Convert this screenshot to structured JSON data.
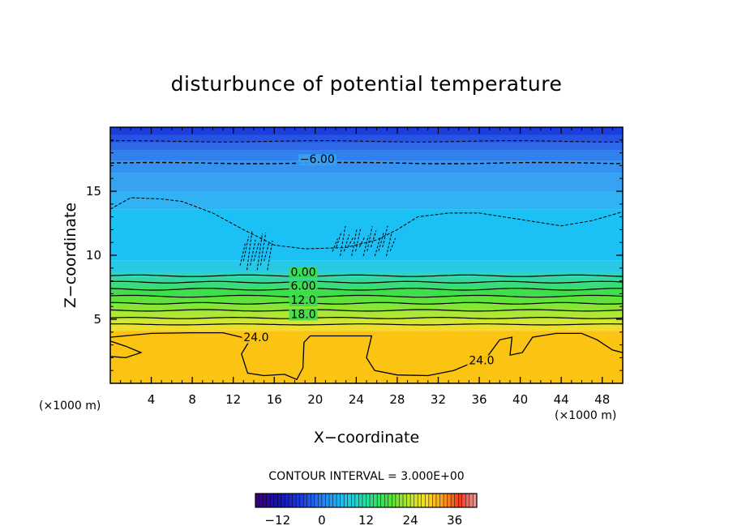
{
  "chart_data": {
    "type": "heatmap",
    "title": "disturbunce of potential temperature",
    "xlabel": "X−coordinate",
    "ylabel": "Z−coordinate",
    "x_unit_left": "(×1000 m)",
    "x_unit_right": "(×1000 m)",
    "xlim": [
      0,
      50
    ],
    "ylim": [
      0,
      20
    ],
    "x_ticks": [
      4,
      8,
      12,
      16,
      20,
      24,
      28,
      32,
      36,
      40,
      44,
      48
    ],
    "y_ticks": [
      5,
      10,
      15
    ],
    "contour_interval_text": "CONTOUR INTERVAL = 3.000E+00",
    "contour_labels": [
      {
        "text": "−6.00",
        "x": 18.5,
        "y": 17.2
      },
      {
        "text": "0.00",
        "x": 17.6,
        "y": 8.4
      },
      {
        "text": "6.00",
        "x": 17.6,
        "y": 7.3
      },
      {
        "text": "12.0",
        "x": 17.6,
        "y": 6.2
      },
      {
        "text": "18.0",
        "x": 17.6,
        "y": 5.1
      },
      {
        "text": "24.0",
        "x": 13.0,
        "y": 3.3
      },
      {
        "text": "24.0",
        "x": 35.0,
        "y": 1.5
      }
    ],
    "levels": [
      {
        "z_top": 20.0,
        "z_bot": 19.4,
        "value": -12,
        "color": "#1a3ddc"
      },
      {
        "z_top": 19.4,
        "z_bot": 18.8,
        "value": -11,
        "color": "#2553e2"
      },
      {
        "z_top": 18.8,
        "z_bot": 18.2,
        "value": -10,
        "color": "#2e6ae8"
      },
      {
        "z_top": 18.2,
        "z_bot": 17.4,
        "value": -9,
        "color": "#3080ee"
      },
      {
        "z_top": 17.4,
        "z_bot": 16.4,
        "value": -7,
        "color": "#3692f0"
      },
      {
        "z_top": 16.4,
        "z_bot": 15.0,
        "value": -6,
        "color": "#37a2f2"
      },
      {
        "z_top": 15.0,
        "z_bot": 13.6,
        "value": -4,
        "color": "#30b2f4"
      },
      {
        "z_top": 13.6,
        "z_bot": 9.6,
        "value": -2,
        "color": "#1bc0f5"
      },
      {
        "z_top": 9.6,
        "z_bot": 8.7,
        "value": 0,
        "color": "#27c9e7"
      },
      {
        "z_top": 8.7,
        "z_bot": 8.3,
        "value": 2,
        "color": "#2fd3c1"
      },
      {
        "z_top": 8.3,
        "z_bot": 7.9,
        "value": 4,
        "color": "#34d89f"
      },
      {
        "z_top": 7.9,
        "z_bot": 7.4,
        "value": 6,
        "color": "#38dc7b"
      },
      {
        "z_top": 7.4,
        "z_bot": 6.8,
        "value": 8,
        "color": "#3ede4d"
      },
      {
        "z_top": 6.8,
        "z_bot": 6.2,
        "value": 11,
        "color": "#5ee33b"
      },
      {
        "z_top": 6.2,
        "z_bot": 5.6,
        "value": 14,
        "color": "#89e535"
      },
      {
        "z_top": 5.6,
        "z_bot": 5.0,
        "value": 16,
        "color": "#b2e634"
      },
      {
        "z_top": 5.0,
        "z_bot": 4.5,
        "value": 18,
        "color": "#d2e632"
      },
      {
        "z_top": 4.5,
        "z_bot": 4.1,
        "value": 21,
        "color": "#f0de2c"
      },
      {
        "z_top": 4.1,
        "z_bot": 0.0,
        "value": 24,
        "color": "#fbc312"
      }
    ],
    "colorbar": {
      "min": -18,
      "max": 42,
      "ticks": [
        -12,
        0,
        12,
        24,
        36
      ],
      "tick_labels": [
        "−12",
        "0",
        "12",
        "24",
        "36"
      ]
    }
  }
}
